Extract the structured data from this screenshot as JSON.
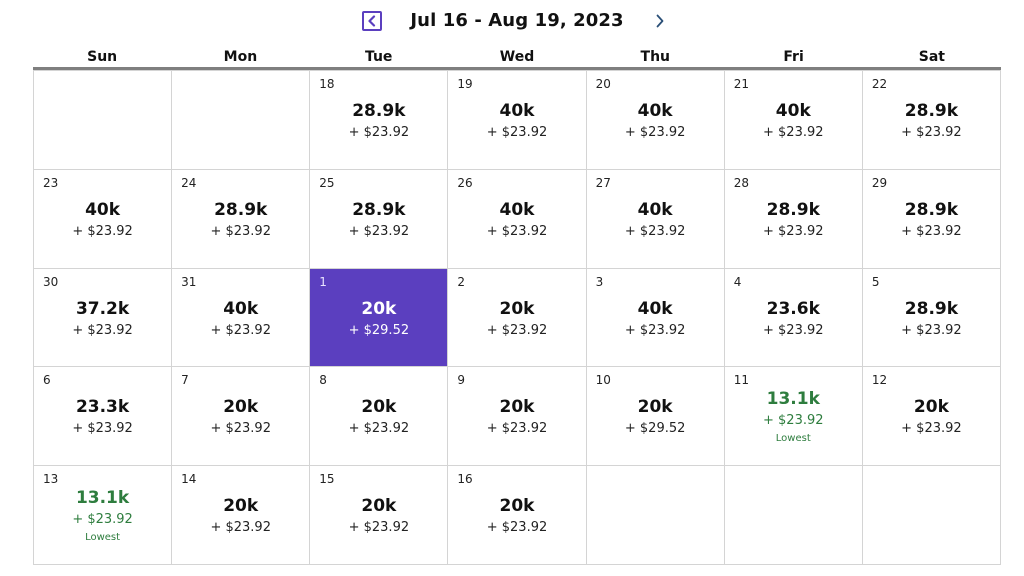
{
  "header": {
    "range_title": "Jul 16 - Aug 19, 2023",
    "prev_icon": "chevron-left-icon",
    "next_icon": "chevron-right-icon"
  },
  "weekdays": [
    "Sun",
    "Mon",
    "Tue",
    "Wed",
    "Thu",
    "Fri",
    "Sat"
  ],
  "colors": {
    "accent": "#5b3fbf",
    "lowest": "#2e7d3e",
    "grid_line": "#d4d4d4"
  },
  "weeks": [
    [
      null,
      null,
      {
        "day": "18",
        "points": "28.9k",
        "fee": "+ $23.92"
      },
      {
        "day": "19",
        "points": "40k",
        "fee": "+ $23.92"
      },
      {
        "day": "20",
        "points": "40k",
        "fee": "+ $23.92"
      },
      {
        "day": "21",
        "points": "40k",
        "fee": "+ $23.92"
      },
      {
        "day": "22",
        "points": "28.9k",
        "fee": "+ $23.92"
      }
    ],
    [
      {
        "day": "23",
        "points": "40k",
        "fee": "+ $23.92"
      },
      {
        "day": "24",
        "points": "28.9k",
        "fee": "+ $23.92"
      },
      {
        "day": "25",
        "points": "28.9k",
        "fee": "+ $23.92"
      },
      {
        "day": "26",
        "points": "40k",
        "fee": "+ $23.92"
      },
      {
        "day": "27",
        "points": "40k",
        "fee": "+ $23.92"
      },
      {
        "day": "28",
        "points": "28.9k",
        "fee": "+ $23.92"
      },
      {
        "day": "29",
        "points": "28.9k",
        "fee": "+ $23.92"
      }
    ],
    [
      {
        "day": "30",
        "points": "37.2k",
        "fee": "+ $23.92"
      },
      {
        "day": "31",
        "points": "40k",
        "fee": "+ $23.92"
      },
      {
        "day": "1",
        "points": "20k",
        "fee": "+ $29.52",
        "selected": true
      },
      {
        "day": "2",
        "points": "20k",
        "fee": "+ $23.92"
      },
      {
        "day": "3",
        "points": "40k",
        "fee": "+ $23.92"
      },
      {
        "day": "4",
        "points": "23.6k",
        "fee": "+ $23.92"
      },
      {
        "day": "5",
        "points": "28.9k",
        "fee": "+ $23.92"
      }
    ],
    [
      {
        "day": "6",
        "points": "23.3k",
        "fee": "+ $23.92"
      },
      {
        "day": "7",
        "points": "20k",
        "fee": "+ $23.92"
      },
      {
        "day": "8",
        "points": "20k",
        "fee": "+ $23.92"
      },
      {
        "day": "9",
        "points": "20k",
        "fee": "+ $23.92"
      },
      {
        "day": "10",
        "points": "20k",
        "fee": "+ $29.52"
      },
      {
        "day": "11",
        "points": "13.1k",
        "fee": "+ $23.92",
        "label": "Lowest"
      },
      {
        "day": "12",
        "points": "20k",
        "fee": "+ $23.92"
      }
    ],
    [
      {
        "day": "13",
        "points": "13.1k",
        "fee": "+ $23.92",
        "label": "Lowest"
      },
      {
        "day": "14",
        "points": "20k",
        "fee": "+ $23.92"
      },
      {
        "day": "15",
        "points": "20k",
        "fee": "+ $23.92"
      },
      {
        "day": "16",
        "points": "20k",
        "fee": "+ $23.92"
      },
      null,
      null,
      null
    ]
  ]
}
